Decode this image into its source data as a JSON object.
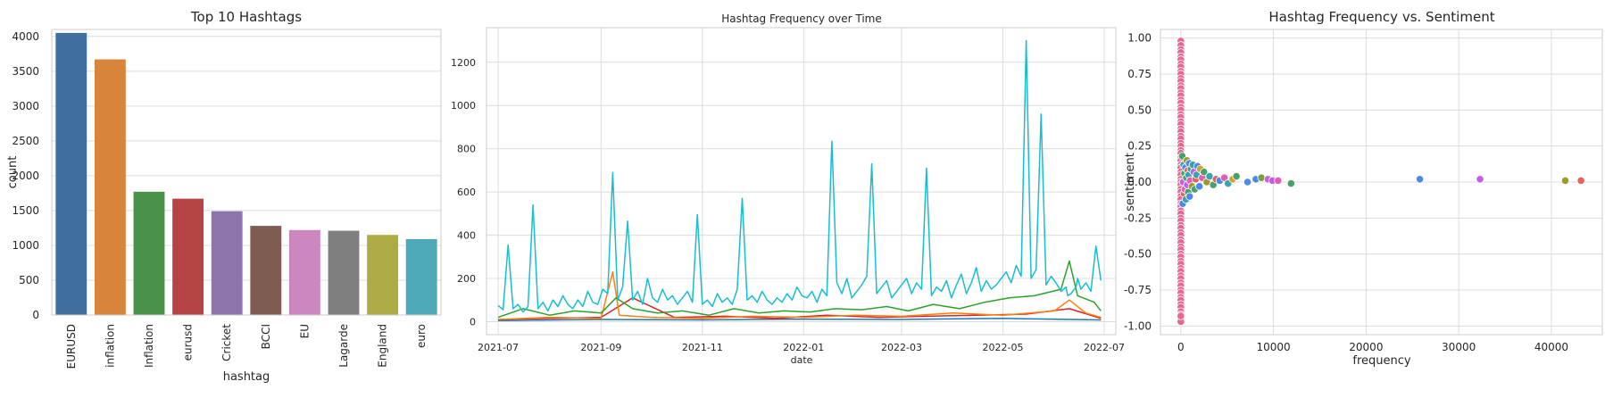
{
  "chart_data": [
    {
      "type": "bar",
      "title": "Top 10 Hashtags",
      "xlabel": "hashtag",
      "ylabel": "count",
      "ylim": [
        0,
        4100
      ],
      "yticks": [
        0,
        500,
        1000,
        1500,
        2000,
        2500,
        3000,
        3500,
        4000
      ],
      "grid": true,
      "categories": [
        "EURUSD",
        "inflation",
        "Inflation",
        "eurusd",
        "Cricket",
        "BCCI",
        "EU",
        "Lagarde",
        "England",
        "euro"
      ],
      "values": [
        4050,
        3670,
        1770,
        1670,
        1490,
        1280,
        1220,
        1210,
        1150,
        1090
      ],
      "colors": [
        "#3f6f9e",
        "#d9843b",
        "#4a924a",
        "#b64445",
        "#8e74ad",
        "#7f5c52",
        "#cc87bf",
        "#7f7f7f",
        "#acab45",
        "#4eaab8"
      ]
    },
    {
      "type": "line",
      "title": "Hashtag Frequency over Time",
      "xlabel": "date",
      "ylabel": "",
      "xlim": [
        "2021-06-24",
        "2022-07-08"
      ],
      "ylim": [
        -60,
        1360
      ],
      "xticks": [
        "2021-07",
        "2021-09",
        "2021-11",
        "2022-01",
        "2022-03",
        "2022-05",
        "2022-07"
      ],
      "yticks": [
        0,
        200,
        400,
        600,
        800,
        1000,
        1200
      ],
      "grid": true,
      "series": [
        {
          "color": "#17becf",
          "x": [
            "2021-07-01",
            "2021-07-04",
            "2021-07-07",
            "2021-07-10",
            "2021-07-13",
            "2021-07-16",
            "2021-07-19",
            "2021-07-22",
            "2021-07-25",
            "2021-07-28",
            "2021-07-31",
            "2021-08-03",
            "2021-08-06",
            "2021-08-09",
            "2021-08-12",
            "2021-08-15",
            "2021-08-18",
            "2021-08-21",
            "2021-08-24",
            "2021-08-27",
            "2021-08-30",
            "2021-09-02",
            "2021-09-05",
            "2021-09-08",
            "2021-09-11",
            "2021-09-14",
            "2021-09-17",
            "2021-09-20",
            "2021-09-23",
            "2021-09-26",
            "2021-09-29",
            "2021-10-02",
            "2021-10-05",
            "2021-10-08",
            "2021-10-11",
            "2021-10-14",
            "2021-10-17",
            "2021-10-20",
            "2021-10-23",
            "2021-10-26",
            "2021-10-29",
            "2021-11-01",
            "2021-11-04",
            "2021-11-07",
            "2021-11-10",
            "2021-11-13",
            "2021-11-16",
            "2021-11-19",
            "2021-11-22",
            "2021-11-25",
            "2021-11-28",
            "2021-12-01",
            "2021-12-04",
            "2021-12-07",
            "2021-12-10",
            "2021-12-13",
            "2021-12-16",
            "2021-12-19",
            "2021-12-22",
            "2021-12-25",
            "2021-12-28",
            "2021-12-31",
            "2022-01-03",
            "2022-01-06",
            "2022-01-09",
            "2022-01-12",
            "2022-01-15",
            "2022-01-18",
            "2022-01-21",
            "2022-01-24",
            "2022-01-27",
            "2022-01-30",
            "2022-02-02",
            "2022-02-05",
            "2022-02-08",
            "2022-02-11",
            "2022-02-14",
            "2022-02-17",
            "2022-02-20",
            "2022-02-23",
            "2022-02-26",
            "2022-03-01",
            "2022-03-04",
            "2022-03-07",
            "2022-03-10",
            "2022-03-13",
            "2022-03-16",
            "2022-03-19",
            "2022-03-22",
            "2022-03-25",
            "2022-03-28",
            "2022-03-31",
            "2022-04-03",
            "2022-04-06",
            "2022-04-09",
            "2022-04-12",
            "2022-04-15",
            "2022-04-18",
            "2022-04-21",
            "2022-04-24",
            "2022-04-27",
            "2022-04-30",
            "2022-05-03",
            "2022-05-06",
            "2022-05-09",
            "2022-05-12",
            "2022-05-15",
            "2022-05-18",
            "2022-05-21",
            "2022-05-24",
            "2022-05-27",
            "2022-05-30",
            "2022-06-02",
            "2022-06-05",
            "2022-06-08",
            "2022-06-09",
            "2022-06-11",
            "2022-06-14",
            "2022-06-15",
            "2022-06-17",
            "2022-06-20",
            "2022-06-23",
            "2022-06-26",
            "2022-06-29"
          ],
          "y": [
            75,
            55,
            355,
            60,
            80,
            45,
            70,
            540,
            60,
            90,
            50,
            100,
            70,
            120,
            80,
            60,
            100,
            70,
            140,
            90,
            80,
            150,
            130,
            690,
            100,
            160,
            465,
            100,
            140,
            80,
            200,
            110,
            90,
            150,
            100,
            120,
            80,
            110,
            140,
            90,
            495,
            80,
            100,
            70,
            130,
            90,
            110,
            80,
            150,
            570,
            100,
            120,
            90,
            140,
            100,
            80,
            110,
            90,
            130,
            100,
            160,
            120,
            110,
            140,
            90,
            150,
            120,
            835,
            180,
            130,
            200,
            110,
            140,
            170,
            210,
            730,
            130,
            160,
            190,
            110,
            140,
            170,
            200,
            130,
            180,
            150,
            710,
            120,
            160,
            140,
            190,
            110,
            170,
            220,
            130,
            180,
            250,
            140,
            190,
            150,
            170,
            200,
            230,
            180,
            260,
            210,
            1300,
            200,
            240,
            960,
            170,
            210,
            180,
            140,
            160,
            120,
            130,
            160,
            200,
            150,
            180,
            140,
            350,
            190
          ],
          "values_note": ""
        },
        {
          "color": "#2ca02c",
          "x": [
            "2021-07-01",
            "2021-07-16",
            "2021-08-01",
            "2021-08-16",
            "2021-09-01",
            "2021-09-10",
            "2021-09-20",
            "2021-10-05",
            "2021-10-20",
            "2021-11-05",
            "2021-11-20",
            "2021-12-05",
            "2021-12-20",
            "2022-01-05",
            "2022-01-20",
            "2022-02-05",
            "2022-02-20",
            "2022-03-05",
            "2022-03-20",
            "2022-04-05",
            "2022-04-20",
            "2022-05-05",
            "2022-05-20",
            "2022-06-05",
            "2022-06-10",
            "2022-06-15",
            "2022-06-25",
            "2022-06-29"
          ],
          "y": [
            20,
            60,
            30,
            50,
            40,
            110,
            60,
            40,
            50,
            30,
            60,
            40,
            50,
            45,
            60,
            55,
            70,
            50,
            80,
            60,
            90,
            110,
            120,
            150,
            280,
            120,
            90,
            50
          ]
        },
        {
          "color": "#ff7f0e",
          "x": [
            "2021-07-01",
            "2021-08-01",
            "2021-09-01",
            "2021-09-08",
            "2021-09-12",
            "2021-10-01",
            "2021-11-01",
            "2021-12-01",
            "2022-01-01",
            "2022-02-01",
            "2022-03-01",
            "2022-04-01",
            "2022-05-01",
            "2022-06-01",
            "2022-06-10",
            "2022-06-20",
            "2022-06-29"
          ],
          "y": [
            10,
            20,
            15,
            230,
            30,
            20,
            15,
            25,
            20,
            30,
            25,
            40,
            30,
            50,
            100,
            40,
            20
          ]
        },
        {
          "color": "#d62728",
          "x": [
            "2021-07-01",
            "2021-08-01",
            "2021-09-01",
            "2021-09-20",
            "2021-10-15",
            "2021-11-15",
            "2021-12-15",
            "2022-01-15",
            "2022-02-15",
            "2022-03-15",
            "2022-04-15",
            "2022-05-15",
            "2022-06-10",
            "2022-06-29"
          ],
          "y": [
            10,
            15,
            20,
            110,
            20,
            25,
            15,
            30,
            20,
            25,
            30,
            35,
            60,
            15
          ]
        },
        {
          "color": "#1f77b4",
          "x": [
            "2021-07-01",
            "2021-09-01",
            "2021-11-01",
            "2022-01-01",
            "2022-03-01",
            "2022-05-01",
            "2022-06-29"
          ],
          "y": [
            5,
            10,
            8,
            12,
            10,
            15,
            8
          ]
        }
      ]
    },
    {
      "type": "scatter",
      "title": "Hashtag Frequency vs. Sentiment",
      "xlabel": "frequency",
      "ylabel": "sentiment",
      "xlim": [
        -2200,
        45500
      ],
      "ylim": [
        -1.06,
        1.06
      ],
      "xticks": [
        0,
        10000,
        20000,
        30000,
        40000
      ],
      "yticks": [
        -1.0,
        -0.75,
        -0.5,
        -0.25,
        0.0,
        0.25,
        0.5,
        0.75,
        1.0
      ],
      "grid": true,
      "points": [
        {
          "x": 25800,
          "y": 0.02,
          "color": "#4e8ae5"
        },
        {
          "x": 32300,
          "y": 0.02,
          "color": "#c15ee8"
        },
        {
          "x": 41500,
          "y": 0.01,
          "color": "#9a9a2e"
        },
        {
          "x": 43200,
          "y": 0.01,
          "color": "#e8625a"
        },
        {
          "x": 11900,
          "y": -0.01,
          "color": "#4aa06a"
        },
        {
          "x": 10500,
          "y": 0.01,
          "color": "#e05db8"
        },
        {
          "x": 9900,
          "y": 0.01,
          "color": "#c15ee8"
        },
        {
          "x": 9400,
          "y": 0.02,
          "color": "#c864d8"
        },
        {
          "x": 8700,
          "y": 0.03,
          "color": "#7a9e3a"
        },
        {
          "x": 8100,
          "y": 0.02,
          "color": "#4e8ae5"
        },
        {
          "x": 7200,
          "y": 0.0,
          "color": "#4e8ae5"
        },
        {
          "x": 6000,
          "y": 0.04,
          "color": "#4aa06a"
        },
        {
          "x": 5600,
          "y": 0.02,
          "color": "#d0a030"
        },
        {
          "x": 5100,
          "y": -0.01,
          "color": "#36a4b0"
        },
        {
          "x": 4700,
          "y": 0.03,
          "color": "#e05db8"
        },
        {
          "x": 4200,
          "y": 0.01,
          "color": "#4e8ae5"
        },
        {
          "x": 3800,
          "y": 0.02,
          "color": "#e8625a"
        },
        {
          "x": 3500,
          "y": -0.02,
          "color": "#4aa06a"
        },
        {
          "x": 3100,
          "y": 0.04,
          "color": "#36a4b0"
        },
        {
          "x": 2800,
          "y": 0.0,
          "color": "#9a9a2e"
        },
        {
          "x": 2500,
          "y": 0.07,
          "color": "#4aa06a"
        },
        {
          "x": 2300,
          "y": 0.03,
          "color": "#e05db8"
        },
        {
          "x": 2100,
          "y": 0.09,
          "color": "#d0a030"
        },
        {
          "x": 2000,
          "y": -0.03,
          "color": "#4e8ae5"
        },
        {
          "x": 1800,
          "y": 0.11,
          "color": "#4e8ae5"
        },
        {
          "x": 1700,
          "y": 0.05,
          "color": "#36a4b0"
        },
        {
          "x": 1600,
          "y": 0.02,
          "color": "#e8625a"
        },
        {
          "x": 1500,
          "y": -0.05,
          "color": "#4aa06a"
        },
        {
          "x": 1400,
          "y": 0.07,
          "color": "#c15ee8"
        },
        {
          "x": 1300,
          "y": 0.12,
          "color": "#36a4b0"
        },
        {
          "x": 1200,
          "y": -0.03,
          "color": "#9a9a2e"
        },
        {
          "x": 1100,
          "y": 0.09,
          "color": "#4aa06a"
        },
        {
          "x": 1000,
          "y": 0.01,
          "color": "#e05db8"
        },
        {
          "x": 950,
          "y": -0.1,
          "color": "#4e8ae5"
        },
        {
          "x": 900,
          "y": 0.13,
          "color": "#4e8ae5"
        },
        {
          "x": 850,
          "y": 0.05,
          "color": "#36a4b0"
        },
        {
          "x": 800,
          "y": -0.07,
          "color": "#4aa06a"
        },
        {
          "x": 750,
          "y": 0.08,
          "color": "#e8625a"
        },
        {
          "x": 700,
          "y": -0.02,
          "color": "#c15ee8"
        },
        {
          "x": 650,
          "y": 0.15,
          "color": "#9a9a2e"
        },
        {
          "x": 600,
          "y": 0.03,
          "color": "#4aa06a"
        },
        {
          "x": 550,
          "y": -0.12,
          "color": "#36a4b0"
        },
        {
          "x": 500,
          "y": 0.1,
          "color": "#4e8ae5"
        },
        {
          "x": 450,
          "y": -0.05,
          "color": "#e05db8"
        },
        {
          "x": 400,
          "y": 0.06,
          "color": "#4aa06a"
        },
        {
          "x": 350,
          "y": -0.08,
          "color": "#e8625a"
        },
        {
          "x": 300,
          "y": 0.12,
          "color": "#36a4b0"
        },
        {
          "x": 250,
          "y": 0.0,
          "color": "#c15ee8"
        },
        {
          "x": 200,
          "y": -0.15,
          "color": "#4e8ae5"
        },
        {
          "x": 150,
          "y": 0.18,
          "color": "#4aa06a"
        }
      ],
      "column_points": {
        "x": [
          0,
          0,
          0,
          0,
          0,
          0,
          0,
          0,
          0,
          0,
          0,
          0,
          0,
          0,
          0,
          0,
          0,
          0,
          0,
          0,
          0,
          0,
          0,
          0,
          0,
          0,
          0,
          0,
          0,
          0,
          0,
          0,
          0,
          0,
          0,
          0,
          0,
          0,
          0,
          0,
          0,
          0,
          0,
          0,
          0,
          0,
          0,
          0,
          0,
          0,
          0,
          0,
          0,
          0,
          0,
          0,
          0,
          0,
          0,
          0,
          0,
          0,
          0,
          0,
          0,
          0,
          0,
          0,
          0,
          0,
          0,
          0,
          0,
          0,
          0,
          0,
          0,
          0,
          0,
          0
        ],
        "y": [
          0.98,
          0.95,
          0.92,
          0.9,
          0.87,
          0.85,
          0.82,
          0.8,
          0.77,
          0.75,
          0.72,
          0.7,
          0.67,
          0.65,
          0.62,
          0.6,
          0.57,
          0.55,
          0.52,
          0.5,
          0.47,
          0.45,
          0.42,
          0.4,
          0.37,
          0.35,
          0.32,
          0.3,
          0.27,
          0.25,
          0.22,
          0.2,
          0.17,
          0.15,
          0.12,
          0.1,
          0.07,
          0.05,
          0.02,
          0.0,
          -0.02,
          -0.05,
          -0.07,
          -0.1,
          -0.12,
          -0.15,
          -0.17,
          -0.2,
          -0.22,
          -0.25,
          -0.27,
          -0.3,
          -0.32,
          -0.35,
          -0.37,
          -0.4,
          -0.42,
          -0.45,
          -0.47,
          -0.5,
          -0.52,
          -0.55,
          -0.57,
          -0.6,
          -0.62,
          -0.65,
          -0.67,
          -0.7,
          -0.72,
          -0.75,
          -0.77,
          -0.8,
          -0.82,
          -0.85,
          -0.87,
          -0.9,
          -0.92,
          -0.95,
          -0.97,
          -0.93
        ],
        "color": "#e8668f"
      }
    }
  ]
}
